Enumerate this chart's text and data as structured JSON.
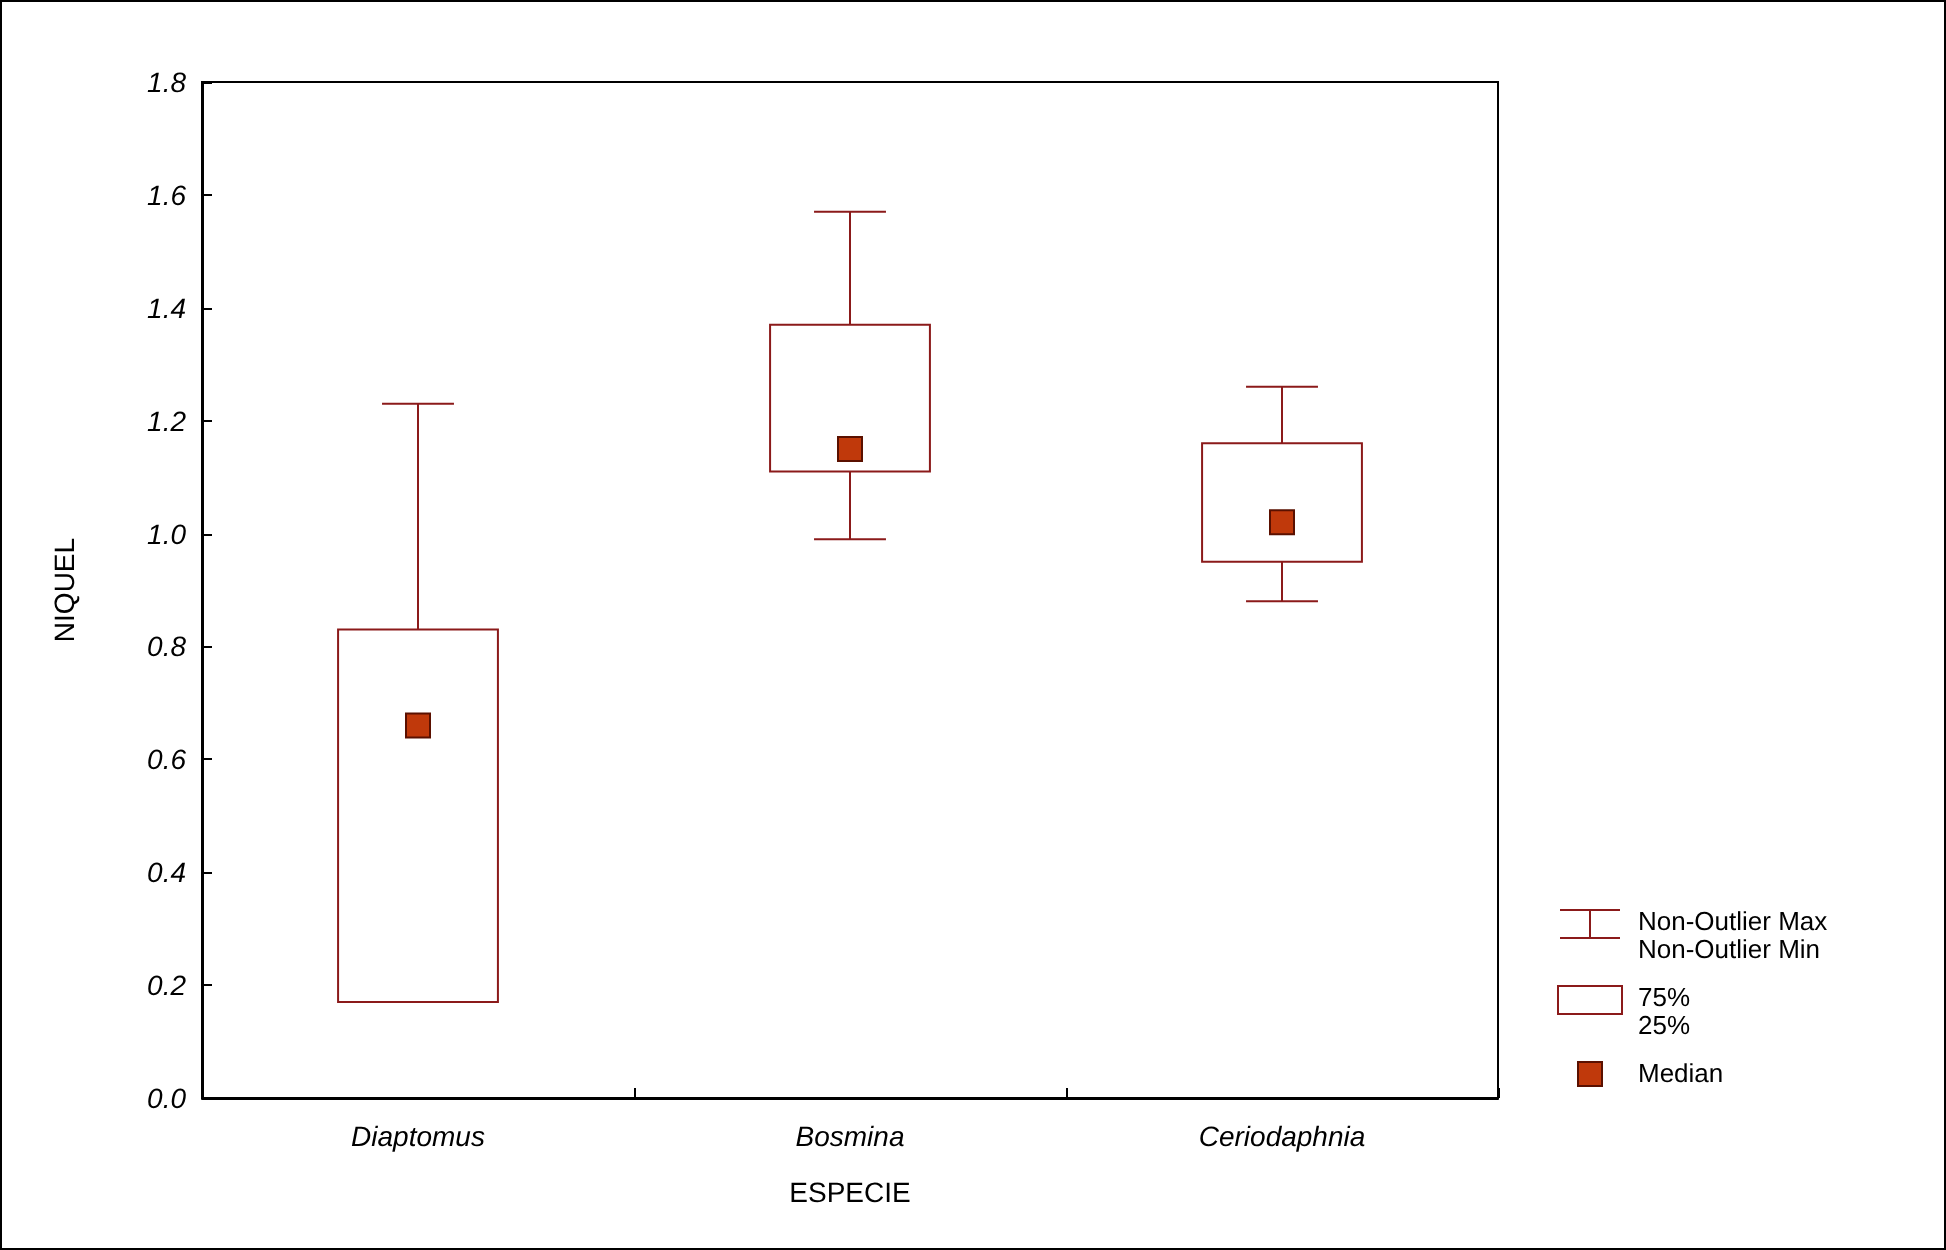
{
  "chart_data": {
    "type": "box",
    "xlabel": "ESPECIE",
    "ylabel": "NIQUEL",
    "categories": [
      "Diaptomus",
      "Bosmina",
      "Ceriodaphnia"
    ],
    "series": [
      {
        "color": "#8b1a1a",
        "boxes": [
          {
            "low": 0.17,
            "q1": 0.17,
            "median": 0.66,
            "q3": 0.83,
            "high": 1.23
          },
          {
            "low": 0.99,
            "q1": 1.11,
            "median": 1.15,
            "q3": 1.37,
            "high": 1.57
          },
          {
            "low": 0.88,
            "q1": 0.95,
            "median": 1.02,
            "q3": 1.16,
            "high": 1.26
          }
        ]
      }
    ],
    "ylim": [
      0,
      1.8
    ],
    "yticks": [
      {
        "value": 0,
        "label": "0.0"
      },
      {
        "value": 0.2,
        "label": "0.2"
      },
      {
        "value": 0.4,
        "label": "0.4"
      },
      {
        "value": 0.6,
        "label": "0.6"
      },
      {
        "value": 0.8,
        "label": "0.8"
      },
      {
        "value": 1,
        "label": "1.0"
      },
      {
        "value": 1.2,
        "label": "1.2"
      },
      {
        "value": 1.4,
        "label": "1.4"
      },
      {
        "value": 1.6,
        "label": "1.6"
      },
      {
        "value": 1.8,
        "label": "1.8"
      }
    ],
    "grid": false,
    "annotations": [
      "Non-Outlier Max",
      "Non-Outlier Min",
      "75%",
      "25%",
      "Median"
    ]
  }
}
